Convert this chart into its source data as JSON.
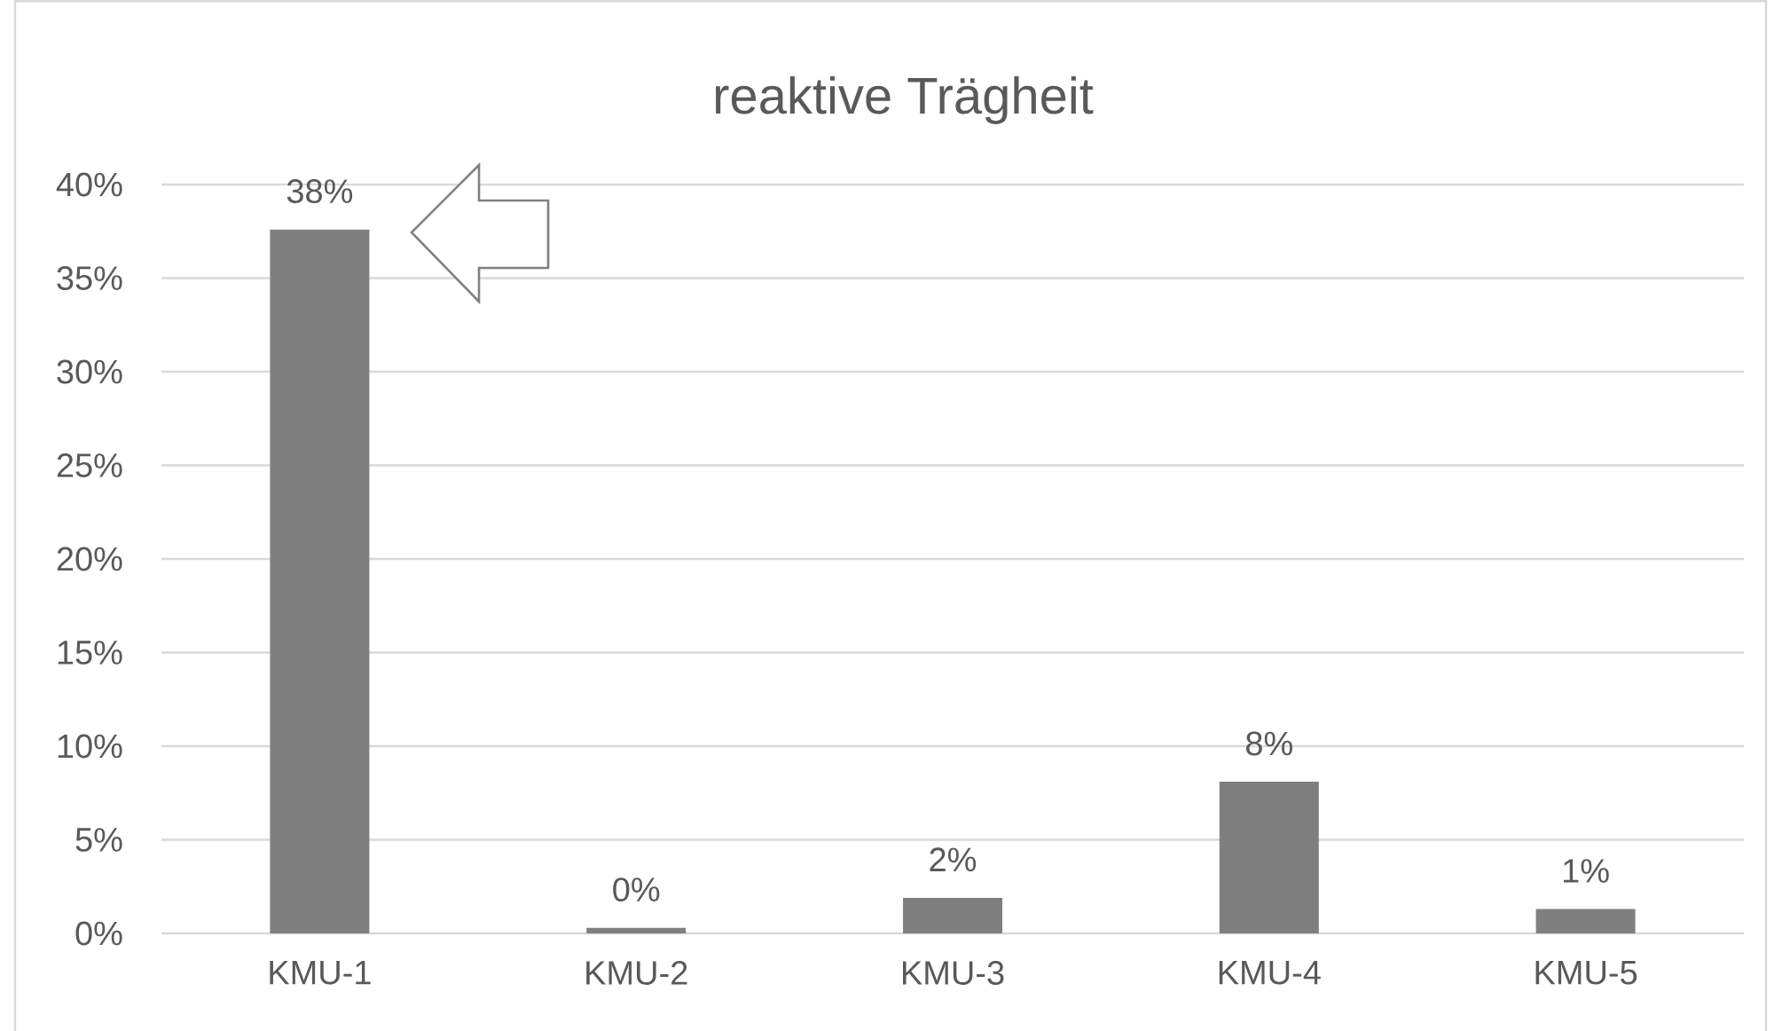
{
  "chart_data": {
    "type": "bar",
    "title": "reaktive Trägheit",
    "categories": [
      "KMU-1",
      "KMU-2",
      "KMU-3",
      "KMU-4",
      "KMU-5"
    ],
    "values": [
      37.6,
      0.3,
      1.9,
      8.1,
      1.3
    ],
    "color": "#7f7f7f",
    "value_labels": [
      "38%",
      "0%",
      "2%",
      "8%",
      "1%"
    ],
    "ylim": [
      0,
      40
    ],
    "yticks": [
      {
        "value": 0,
        "label": "0%"
      },
      {
        "value": 5,
        "label": "5%"
      },
      {
        "value": 10,
        "label": "10%"
      },
      {
        "value": 15,
        "label": "15%"
      },
      {
        "value": 20,
        "label": "20%"
      },
      {
        "value": 25,
        "label": "25%"
      },
      {
        "value": 30,
        "label": "30%"
      },
      {
        "value": 35,
        "label": "35%"
      },
      {
        "value": 40,
        "label": "40%"
      }
    ],
    "grid": "y"
  }
}
